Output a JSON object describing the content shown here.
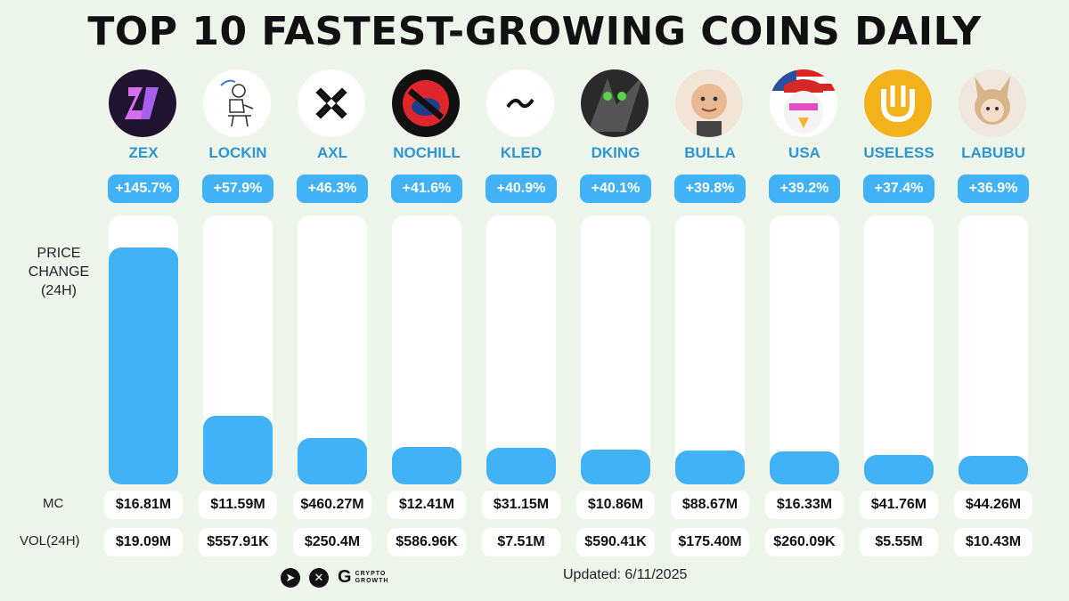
{
  "title": "TOP 10 FASTEST-GROWING COINS DAILY",
  "axis_label": "PRICE CHANGE (24H)",
  "row_labels": {
    "mc": "MC",
    "vol": "VOL(24H)"
  },
  "updated": "Updated: 6/11/2025",
  "footer": {
    "brand_line1": "CRYPTO",
    "brand_line2": "GROWTH",
    "icons": [
      "telegram-icon",
      "x-icon",
      "crypto-growth-logo"
    ]
  },
  "colors": {
    "bar": "#40b2f5",
    "name": "#2f95d3",
    "background": "#eef6ec"
  },
  "chart_data": {
    "type": "bar",
    "categories": [
      "ZEX",
      "LOCKIN",
      "AXL",
      "NOCHILL",
      "KLED",
      "DKING",
      "BULLA",
      "USA",
      "USELESS",
      "LABUBU"
    ],
    "values": [
      145.7,
      57.9,
      46.3,
      41.6,
      40.9,
      40.1,
      39.8,
      39.2,
      37.4,
      36.9
    ],
    "value_labels": [
      "+145.7%",
      "+57.9%",
      "+46.3%",
      "+41.6%",
      "+40.9%",
      "+40.1%",
      "+39.8%",
      "+39.2%",
      "+37.4%",
      "+36.9%"
    ],
    "ylabel": "PRICE CHANGE (24H)",
    "mc": [
      "$16.81M",
      "$11.59M",
      "$460.27M",
      "$12.41M",
      "$31.15M",
      "$10.86M",
      "$88.67M",
      "$16.33M",
      "$41.76M",
      "$44.26M"
    ],
    "vol": [
      "$19.09M",
      "$557.91K",
      "$250.4M",
      "$586.96K",
      "$7.51M",
      "$590.41K",
      "$175.40M",
      "$260.09K",
      "$5.55M",
      "$10.43M"
    ]
  }
}
